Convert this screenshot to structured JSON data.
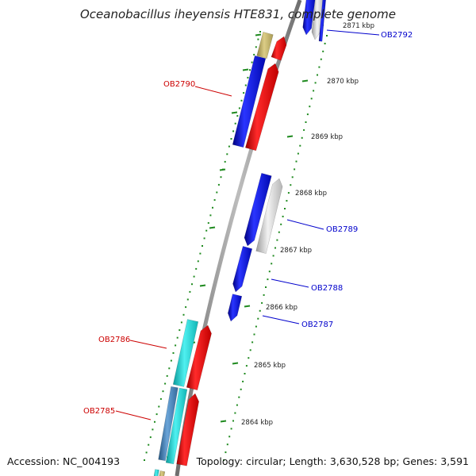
{
  "title": "Oceanobacillus iheyensis HTE831, complete genome",
  "accession_text": "Accession: NC_004193",
  "topology_text": "Topology: circular; Length: 3,630,528 bp; Genes: 3,591",
  "colors": {
    "backbone": "#8a8a8a",
    "tick": "#1f8a1f",
    "label_forward": "#0000cc",
    "label_reverse": "#cc0000",
    "gene_blue": "#0a10e6",
    "gene_red": "#ff0000",
    "gene_gray": "#c8c8c8",
    "gene_olive": "#c4b46a",
    "gene_cyan": "#17d1d1",
    "gene_steel": "#3f7fbf"
  },
  "kbp_labels": [
    "2871 kbp",
    "2870 kbp",
    "2869 kbp",
    "2868 kbp",
    "2867 kbp",
    "2866 kbp",
    "2865 kbp",
    "2864 kbp"
  ],
  "gene_labels": {
    "forward": [
      "OB2792",
      "OB2789",
      "OB2788",
      "OB2787"
    ],
    "reverse": [
      "OB2790",
      "OB2786",
      "OB2785"
    ]
  }
}
